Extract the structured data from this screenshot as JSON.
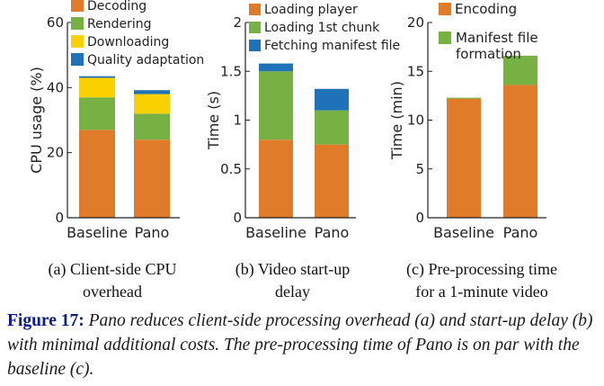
{
  "colors": {
    "orange": "#e07b2a",
    "green": "#77b144",
    "yellow": "#fbd000",
    "blue": "#1f71b8"
  },
  "chart_data": [
    {
      "type": "bar",
      "stacked": true,
      "categories": [
        "Baseline",
        "Pano"
      ],
      "series": [
        {
          "name": "Decoding",
          "values": [
            27,
            24
          ],
          "color": "orange"
        },
        {
          "name": "Rendering",
          "values": [
            10,
            8
          ],
          "color": "green"
        },
        {
          "name": "Downloading",
          "values": [
            6,
            6
          ],
          "color": "yellow"
        },
        {
          "name": "Quality adaptation",
          "values": [
            0.5,
            1.2
          ],
          "color": "blue"
        }
      ],
      "ylabel": "CPU usage (%)",
      "ylim": [
        0,
        60
      ],
      "yticks": [
        0,
        20,
        40,
        60
      ],
      "legend": "top-left"
    },
    {
      "type": "bar",
      "stacked": true,
      "categories": [
        "Baseline",
        "Pano"
      ],
      "series": [
        {
          "name": "Loading player",
          "values": [
            0.8,
            0.75
          ],
          "color": "orange"
        },
        {
          "name": "Loading 1st chunk",
          "values": [
            0.7,
            0.35
          ],
          "color": "green"
        },
        {
          "name": "Fetching manifest file",
          "values": [
            0.08,
            0.22
          ],
          "color": "blue"
        }
      ],
      "ylabel": "Time (s)",
      "ylim": [
        0,
        2
      ],
      "yticks": [
        0,
        0.5,
        1,
        1.5,
        2
      ],
      "legend": "top-left"
    },
    {
      "type": "bar",
      "stacked": true,
      "categories": [
        "Baseline",
        "Pano"
      ],
      "series": [
        {
          "name": "Encoding",
          "values": [
            12.2,
            13.6
          ],
          "color": "orange"
        },
        {
          "name": "Manifest file formation",
          "values": [
            0.1,
            3.0
          ],
          "color": "green"
        }
      ],
      "ylabel": "Time (min)",
      "ylim": [
        0,
        20
      ],
      "yticks": [
        0,
        5,
        10,
        15,
        20
      ],
      "legend": "top-left"
    }
  ],
  "subcaptions": [
    {
      "line1": "(a) Client-side CPU",
      "line2": "overhead"
    },
    {
      "line1": "(b) Video start-up",
      "line2": "delay"
    },
    {
      "line1": "(c) Pre-processing time",
      "line2": "for a 1-minute video"
    }
  ],
  "figure_caption": {
    "label": "Figure 17:",
    "text": "Pano reduces client-side processing overhead (a) and start-up delay (b) with minimal additional costs. The pre-processing time of Pano is on par with the baseline (c)."
  }
}
